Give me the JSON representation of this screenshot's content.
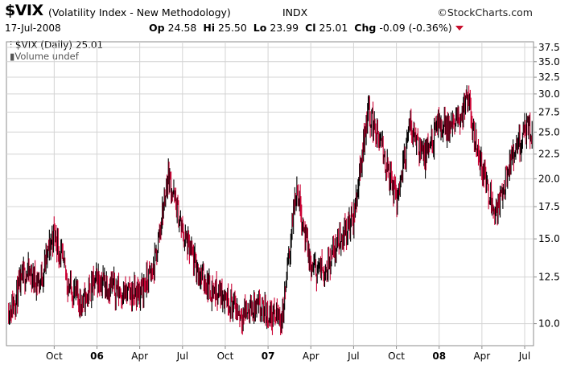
{
  "header": {
    "symbol": "$VIX",
    "name": "(Volatility Index - New Methodology)",
    "exchange": "INDX",
    "brand": "StockCharts.com",
    "brand_symbol": "©",
    "date": "17-Jul-2008",
    "open_label": "Op",
    "open": "24.58",
    "high_label": "Hi",
    "high": "25.50",
    "low_label": "Lo",
    "low": "23.99",
    "close_label": "Cl",
    "close": "25.01",
    "change_label": "Chg",
    "change": "-0.09 (-0.36%)"
  },
  "legend": {
    "price": "$VIX (Daily) 25.01",
    "volume": "Volume undef"
  },
  "colors": {
    "up": "#000000",
    "down": "#cc0033",
    "grid": "#d4d4d4",
    "frame": "#8c8c8c"
  },
  "chart_data": {
    "type": "ohlc",
    "title": "$VIX (Daily) 25.01",
    "y_scale": "log",
    "ylim": [
      9,
      38.5
    ],
    "y_ticks": [
      10.0,
      12.5,
      15.0,
      17.5,
      20.0,
      22.5,
      25.0,
      27.5,
      30.0,
      32.5,
      35.0,
      37.5
    ],
    "x_ticks": [
      {
        "label": "Oct",
        "date": "2005-10"
      },
      {
        "label": "06",
        "date": "2006-01",
        "bold": true
      },
      {
        "label": "Apr",
        "date": "2006-04"
      },
      {
        "label": "Jul",
        "date": "2006-07"
      },
      {
        "label": "Oct",
        "date": "2006-10"
      },
      {
        "label": "07",
        "date": "2007-01",
        "bold": true
      },
      {
        "label": "Apr",
        "date": "2007-04"
      },
      {
        "label": "Jul",
        "date": "2007-07"
      },
      {
        "label": "Oct",
        "date": "2007-10"
      },
      {
        "label": "08",
        "date": "2008-01",
        "bold": true
      },
      {
        "label": "Apr",
        "date": "2008-04"
      },
      {
        "label": "Jul",
        "date": "2008-07"
      }
    ],
    "grid": true,
    "series": [
      {
        "name": "$VIX (Daily)",
        "approx_close_path": [
          [
            "2005-07",
            10.8
          ],
          [
            "2005-08",
            12.8
          ],
          [
            "2005-09",
            12.2
          ],
          [
            "2005-10",
            15.6
          ],
          [
            "2005-11",
            12.0
          ],
          [
            "2005-12",
            11.0
          ],
          [
            "2006-01",
            12.4
          ],
          [
            "2006-02",
            12.0
          ],
          [
            "2006-03",
            11.5
          ],
          [
            "2006-04",
            11.6
          ],
          [
            "2006-05",
            13.0
          ],
          [
            "2006-06",
            20.5
          ],
          [
            "2006-07",
            15.5
          ],
          [
            "2006-08",
            13.0
          ],
          [
            "2006-09",
            11.8
          ],
          [
            "2006-10",
            11.5
          ],
          [
            "2006-11",
            10.5
          ],
          [
            "2006-12",
            10.8
          ],
          [
            "2007-01",
            10.5
          ],
          [
            "2007-02",
            10.3
          ],
          [
            "2007-03",
            19.5
          ],
          [
            "2007-04",
            13.0
          ],
          [
            "2007-05",
            13.0
          ],
          [
            "2007-06",
            15.0
          ],
          [
            "2007-07",
            16.5
          ],
          [
            "2007-08",
            28.0
          ],
          [
            "2007-09",
            23.0
          ],
          [
            "2007-10",
            18.0
          ],
          [
            "2007-11",
            26.0
          ],
          [
            "2007-12",
            22.0
          ],
          [
            "2008-01",
            26.0
          ],
          [
            "2008-02",
            25.5
          ],
          [
            "2008-03",
            29.0
          ],
          [
            "2008-04",
            21.0
          ],
          [
            "2008-05",
            17.0
          ],
          [
            "2008-06",
            21.5
          ],
          [
            "2008-07",
            25.0
          ]
        ]
      }
    ]
  }
}
